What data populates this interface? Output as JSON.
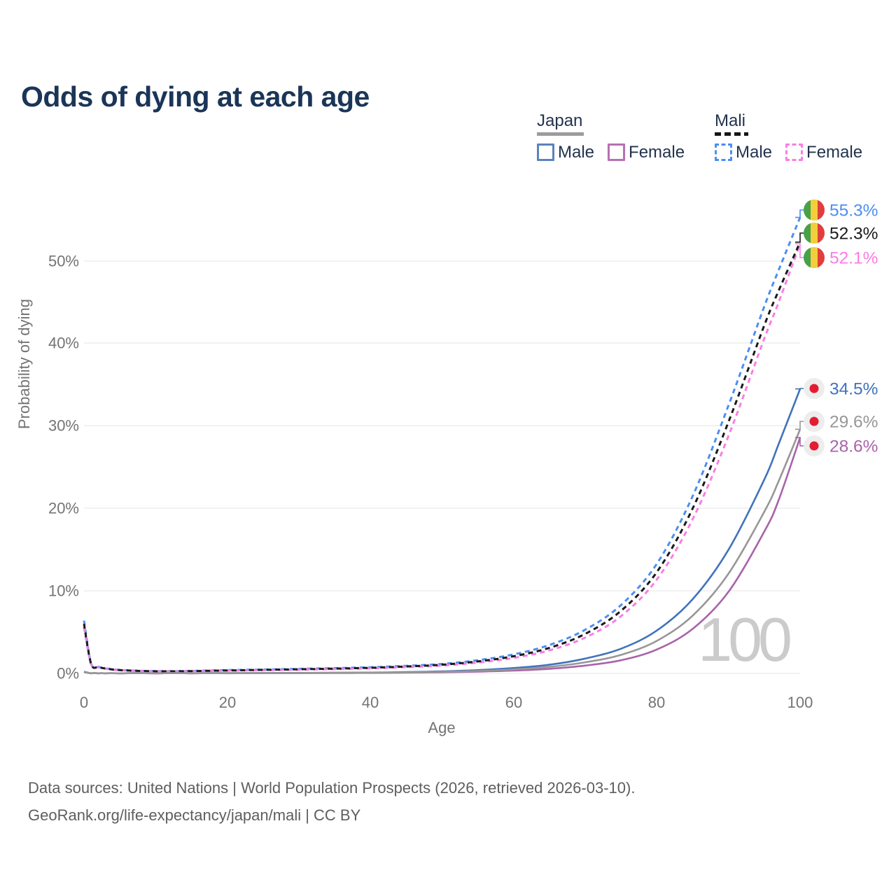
{
  "title": "Odds of dying at each age",
  "watermark": "100",
  "legend": {
    "japan": {
      "label": "Japan",
      "male": "Male",
      "female": "Female"
    },
    "mali": {
      "label": "Mali",
      "male": "Male",
      "female": "Female"
    }
  },
  "footer": {
    "line1": "Data sources: United Nations | World Population Prospects (2026, retrieved 2026-03-10).",
    "line2": "GeoRank.org/life-expectancy/japan/mali | CC BY"
  },
  "colors": {
    "title_text": "#1a3557",
    "legend_text": "#22334e",
    "axis_text": "#747474",
    "gridline": "#ebebeb",
    "footer_text": "#5e5e5e",
    "watermark": "#cbcbcb",
    "japan_flag_red": "#e11d32",
    "mali_flag_green": "#47a148",
    "mali_flag_yellow": "#f2ce3c",
    "mali_flag_red": "#e13d3d"
  },
  "chart_data": {
    "type": "line",
    "title": "Odds of dying at each age",
    "xlabel": "Age",
    "ylabel": "Probability of dying",
    "xlim": [
      0,
      100
    ],
    "ylim": [
      0,
      57
    ],
    "grid": true,
    "legend_position": "top-right",
    "yticks": [
      "0%",
      "10%",
      "20%",
      "30%",
      "40%",
      "50%"
    ],
    "xticks": [
      "0",
      "20",
      "40",
      "60",
      "80",
      "100"
    ],
    "ages": [
      0,
      1,
      2,
      3,
      5,
      10,
      15,
      20,
      25,
      30,
      35,
      40,
      45,
      50,
      55,
      60,
      65,
      70,
      75,
      80,
      85,
      90,
      95,
      97,
      100
    ],
    "series": [
      {
        "id": "mali-male",
        "name": "Mali Male",
        "country": "Mali",
        "sex": "Male",
        "style": "dashed",
        "color": "#4d8ef2",
        "icon": "mali-flag",
        "end_label": "55.3%",
        "values": [
          6.4,
          1.2,
          0.8,
          0.62,
          0.42,
          0.28,
          0.3,
          0.4,
          0.47,
          0.55,
          0.64,
          0.75,
          0.92,
          1.15,
          1.6,
          2.3,
          3.45,
          5.3,
          8.3,
          13.3,
          21.5,
          32.5,
          44.5,
          48.9,
          55.3
        ]
      },
      {
        "id": "mali-both",
        "name": "Mali",
        "country": "Mali",
        "sex": "Both",
        "style": "dashed",
        "color": "#1a1a1a",
        "icon": "mali-flag",
        "end_label": "52.3%",
        "values": [
          6.0,
          1.15,
          0.77,
          0.6,
          0.4,
          0.26,
          0.28,
          0.36,
          0.43,
          0.5,
          0.58,
          0.68,
          0.84,
          1.05,
          1.45,
          2.08,
          3.1,
          4.8,
          7.6,
          12.3,
          20.0,
          30.5,
          42.2,
          46.4,
          52.3
        ]
      },
      {
        "id": "mali-female",
        "name": "Mali Female",
        "country": "Mali",
        "sex": "Female",
        "style": "dashed",
        "color": "#fa7de4",
        "icon": "mali-flag",
        "end_label": "52.1%",
        "values": [
          5.6,
          1.1,
          0.74,
          0.57,
          0.38,
          0.25,
          0.26,
          0.33,
          0.39,
          0.45,
          0.52,
          0.61,
          0.76,
          0.95,
          1.32,
          1.88,
          2.8,
          4.35,
          6.95,
          11.4,
          18.7,
          28.8,
          40.6,
          45.0,
          52.1
        ]
      },
      {
        "id": "japan-male",
        "name": "Japan Male",
        "country": "Japan",
        "sex": "Male",
        "style": "solid",
        "color": "#4173bb",
        "icon": "japan-flag",
        "end_label": "34.5%",
        "values": [
          0.2,
          0.02,
          0.015,
          0.013,
          0.01,
          0.009,
          0.02,
          0.04,
          0.05,
          0.06,
          0.08,
          0.1,
          0.16,
          0.25,
          0.4,
          0.65,
          1.05,
          1.8,
          3.0,
          5.2,
          9.0,
          15.0,
          23.5,
          27.8,
          34.5
        ]
      },
      {
        "id": "japan-both",
        "name": "Japan",
        "country": "Japan",
        "sex": "Both",
        "style": "solid",
        "color": "#979797",
        "icon": "japan-flag",
        "end_label": "29.6%",
        "values": [
          0.17,
          0.018,
          0.013,
          0.011,
          0.009,
          0.008,
          0.015,
          0.03,
          0.04,
          0.05,
          0.065,
          0.08,
          0.12,
          0.19,
          0.3,
          0.48,
          0.8,
          1.35,
          2.25,
          3.95,
          7.0,
          12.1,
          19.6,
          23.3,
          29.6
        ]
      },
      {
        "id": "japan-female",
        "name": "Japan Female",
        "country": "Japan",
        "sex": "Female",
        "style": "solid",
        "color": "#a963a8",
        "icon": "japan-flag",
        "end_label": "28.6%",
        "values": [
          0.15,
          0.016,
          0.012,
          0.01,
          0.008,
          0.007,
          0.012,
          0.02,
          0.03,
          0.035,
          0.05,
          0.06,
          0.09,
          0.14,
          0.22,
          0.34,
          0.56,
          0.95,
          1.6,
          2.9,
          5.4,
          9.9,
          17.2,
          21.0,
          28.6
        ]
      }
    ]
  }
}
